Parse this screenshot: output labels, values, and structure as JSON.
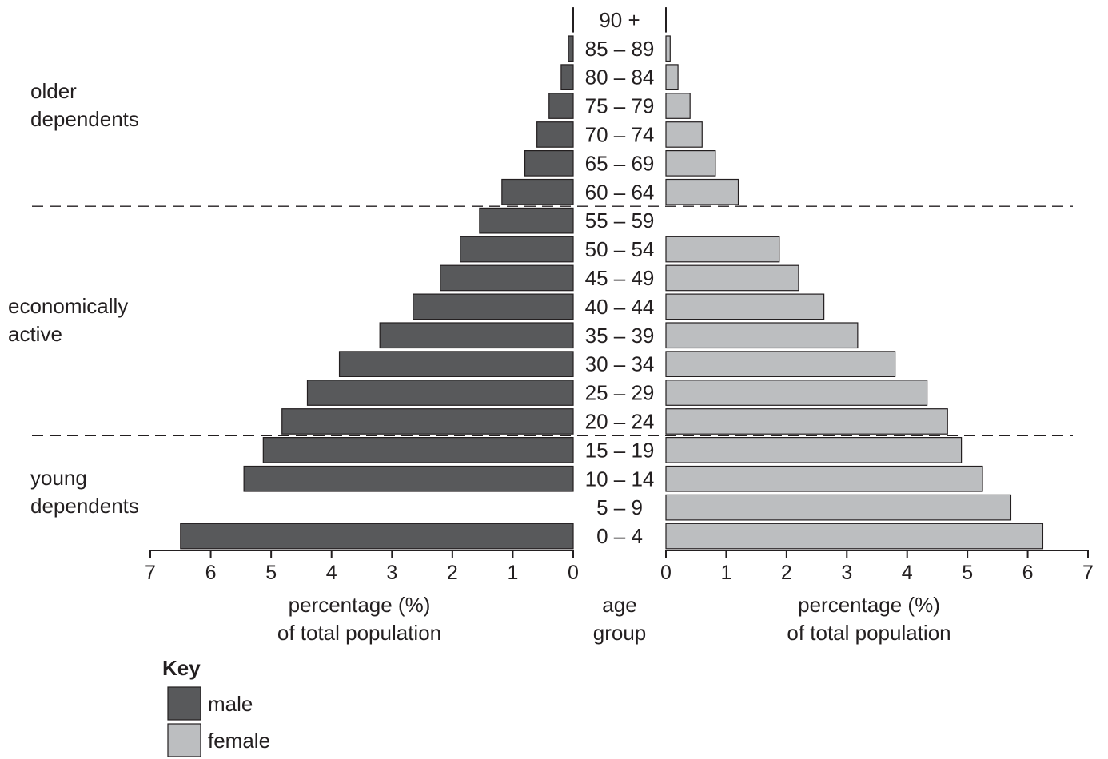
{
  "chart_data": {
    "type": "bar",
    "orientation": "horizontal",
    "layout": "population-pyramid",
    "categories": [
      "0 – 4",
      "5 – 9",
      "10 – 14",
      "15 – 19",
      "20 – 24",
      "25 – 29",
      "30 – 34",
      "35 – 39",
      "40 – 44",
      "45 – 49",
      "50 – 54",
      "55 – 59",
      "60 – 64",
      "65 – 69",
      "70 – 74",
      "75 – 79",
      "80 – 84",
      "85 – 89",
      "90 +"
    ],
    "series": [
      {
        "name": "male",
        "color": "#58595b",
        "values": [
          6.5,
          null,
          5.45,
          5.13,
          4.82,
          4.4,
          3.87,
          3.2,
          2.65,
          2.2,
          1.87,
          1.55,
          1.18,
          0.8,
          0.6,
          0.4,
          0.2,
          0.08,
          0.0
        ]
      },
      {
        "name": "female",
        "color": "#bcbec0",
        "values": [
          6.25,
          5.72,
          5.25,
          4.9,
          4.67,
          4.33,
          3.8,
          3.18,
          2.62,
          2.2,
          1.88,
          null,
          1.2,
          0.82,
          0.6,
          0.4,
          0.2,
          0.07,
          0.0
        ]
      }
    ],
    "xlim": [
      0,
      7
    ],
    "ticks": [
      "0",
      "1",
      "2",
      "3",
      "4",
      "5",
      "6",
      "7"
    ],
    "xlabel_left": [
      "percentage (%)",
      "of total population"
    ],
    "xlabel_right": [
      "percentage (%)",
      "of total population"
    ],
    "center_label": [
      "age",
      "group"
    ],
    "groups": [
      {
        "label": [
          "older",
          "dependents"
        ],
        "from_category": "60 – 64",
        "to_category": "90 +"
      },
      {
        "label": [
          "economically",
          "active"
        ],
        "from_category": "20 – 24",
        "to_category": "55 – 59"
      },
      {
        "label": [
          "young",
          "dependents"
        ],
        "from_category": "0 – 4",
        "to_category": "15 – 19"
      }
    ],
    "legend": {
      "title": "Key",
      "position": "bottom-left",
      "entries": [
        {
          "label": "male",
          "color": "#58595b"
        },
        {
          "label": "female",
          "color": "#bcbec0"
        }
      ]
    },
    "grid": false
  }
}
